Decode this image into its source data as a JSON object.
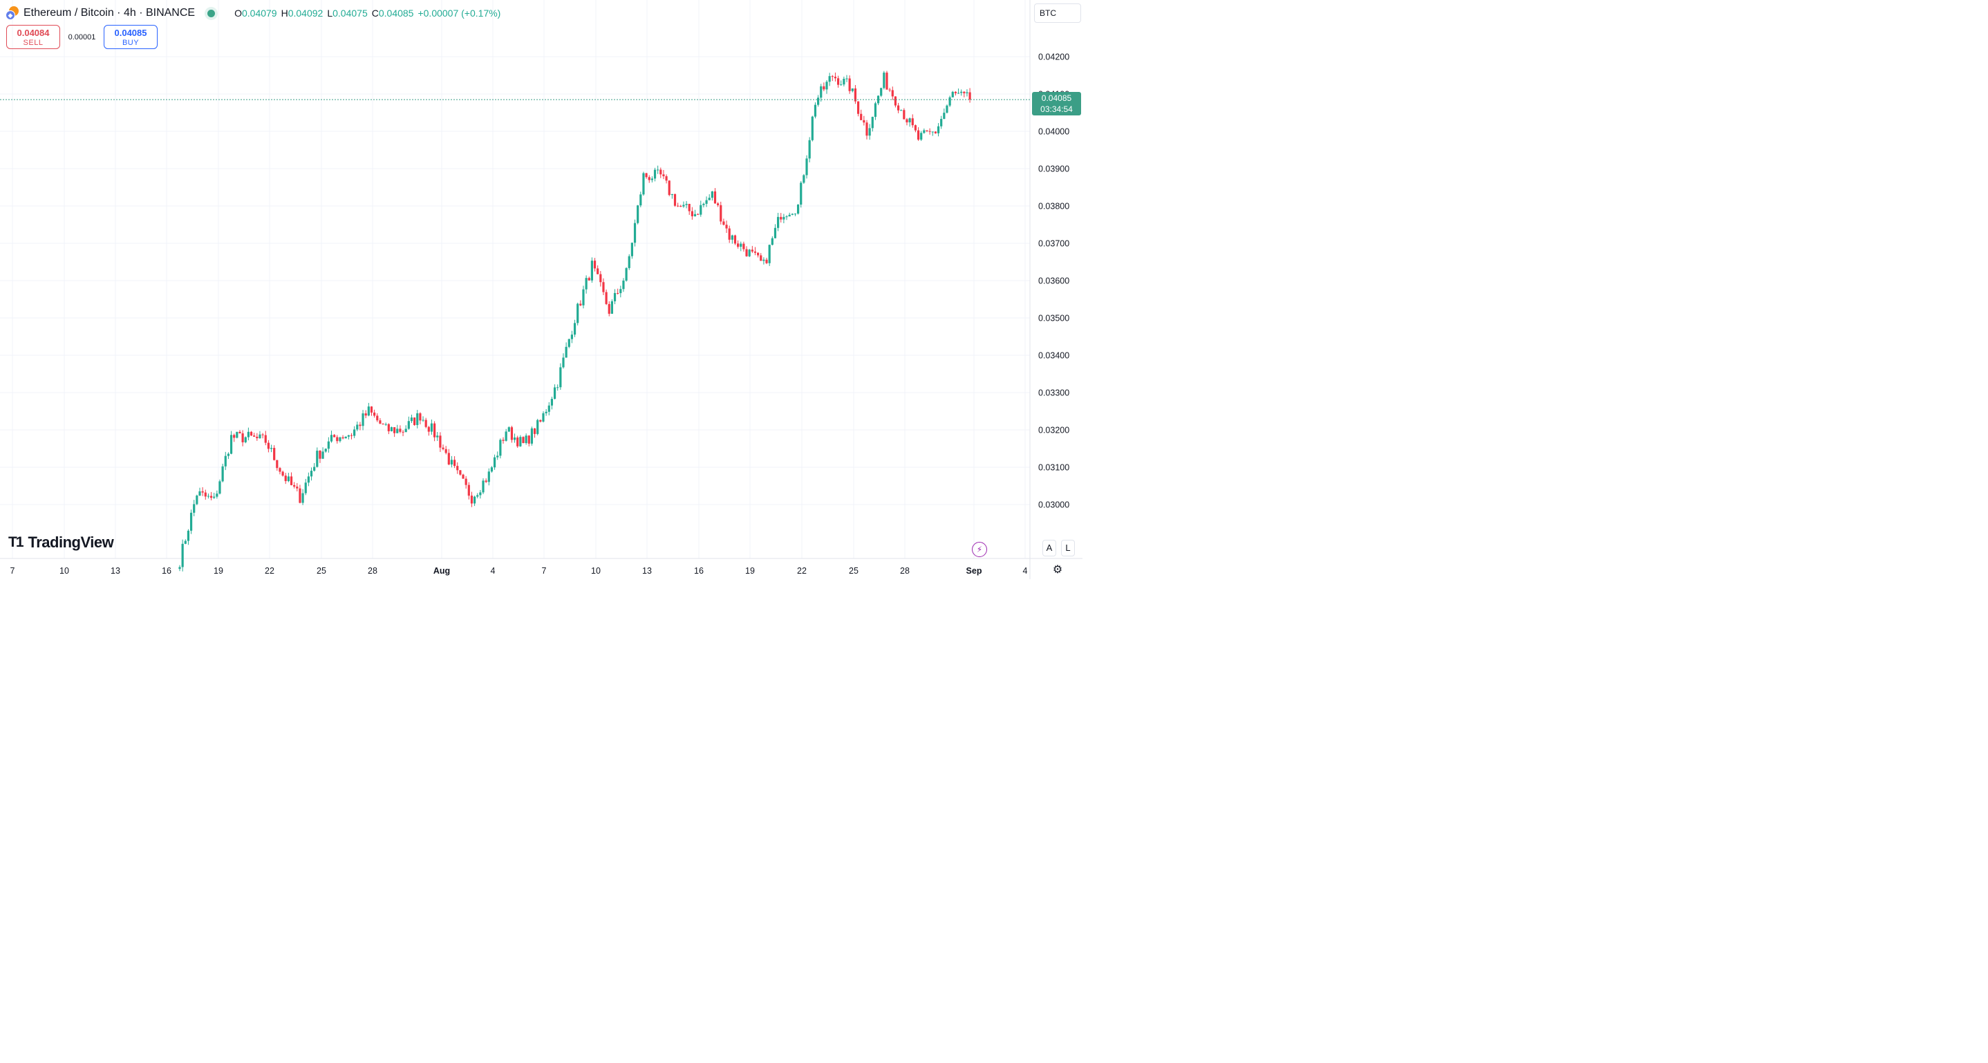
{
  "header": {
    "symbol": "Ethereum / Bitcoin · 4h · BINANCE",
    "o_label": "O",
    "o_value": "0.04079",
    "h_label": "H",
    "h_value": "0.04092",
    "l_label": "L",
    "l_value": "0.04075",
    "c_label": "C",
    "c_value": "0.04085",
    "change": "+0.00007 (+0.17%)"
  },
  "trade": {
    "sell_price": "0.04084",
    "sell_label": "SELL",
    "spread": "0.00001",
    "buy_price": "0.04085",
    "buy_label": "BUY"
  },
  "currency": "BTC",
  "last_price_tag": {
    "price": "0.04085",
    "countdown": "03:34:54"
  },
  "brand": "TradingView",
  "scale_buttons": {
    "a": "A",
    "l": "L"
  },
  "colors": {
    "up": "#22ab94",
    "down": "#f23645",
    "tag": "#3b9e86",
    "grid": "#f0f3fa"
  },
  "chart_data": {
    "type": "candlestick",
    "timeframe": "4h",
    "ylim": [
      0.0285,
      0.0425
    ],
    "y_ticks": [
      "0.03000",
      "0.03100",
      "0.03200",
      "0.03300",
      "0.03400",
      "0.03500",
      "0.03600",
      "0.03700",
      "0.03800",
      "0.03900",
      "0.04000",
      "0.04100",
      "0.04200"
    ],
    "x_ticks": [
      "7",
      "10",
      "13",
      "16",
      "19",
      "22",
      "25",
      "28",
      "Aug",
      "4",
      "7",
      "10",
      "13",
      "16",
      "19",
      "22",
      "25",
      "28",
      "Sep",
      "4"
    ],
    "last_price": 0.04085,
    "daily_closes": [
      [
        "Jul 17",
        0.0285
      ],
      [
        "Jul 18",
        0.0303
      ],
      [
        "Jul 19",
        0.0301
      ],
      [
        "Jul 20",
        0.0318
      ],
      [
        "Jul 21",
        0.0318
      ],
      [
        "Jul 22",
        0.0317
      ],
      [
        "Jul 23",
        0.0308
      ],
      [
        "Jul 24",
        0.0302
      ],
      [
        "Jul 25",
        0.0313
      ],
      [
        "Jul 26",
        0.0318
      ],
      [
        "Jul 27",
        0.0319
      ],
      [
        "Jul 28",
        0.0325
      ],
      [
        "Jul 29",
        0.032
      ],
      [
        "Jul 30",
        0.032
      ],
      [
        "Jul 31",
        0.0324
      ],
      [
        "Aug 1",
        0.0318
      ],
      [
        "Aug 2",
        0.0309
      ],
      [
        "Aug 3",
        0.0302
      ],
      [
        "Aug 4",
        0.0308
      ],
      [
        "Aug 5",
        0.032
      ],
      [
        "Aug 6",
        0.0316
      ],
      [
        "Aug 7",
        0.0322
      ],
      [
        "Aug 8",
        0.0333
      ],
      [
        "Aug 9",
        0.035
      ],
      [
        "Aug 10",
        0.0364
      ],
      [
        "Aug 11",
        0.0352
      ],
      [
        "Aug 12",
        0.0362
      ],
      [
        "Aug 13",
        0.0388
      ],
      [
        "Aug 14",
        0.0388
      ],
      [
        "Aug 15",
        0.038
      ],
      [
        "Aug 16",
        0.0378
      ],
      [
        "Aug 17",
        0.0383
      ],
      [
        "Aug 18",
        0.0372
      ],
      [
        "Aug 19",
        0.0368
      ],
      [
        "Aug 20",
        0.0364
      ],
      [
        "Aug 21",
        0.0378
      ],
      [
        "Aug 22",
        0.038
      ],
      [
        "Aug 23",
        0.0408
      ],
      [
        "Aug 24",
        0.0415
      ],
      [
        "Aug 25",
        0.0412
      ],
      [
        "Aug 26",
        0.04
      ],
      [
        "Aug 27",
        0.0414
      ],
      [
        "Aug 28",
        0.0406
      ],
      [
        "Aug 29",
        0.0398
      ],
      [
        "Aug 30",
        0.04
      ],
      [
        "Aug 31",
        0.041
      ],
      [
        "Sep 1",
        0.04085
      ]
    ]
  }
}
